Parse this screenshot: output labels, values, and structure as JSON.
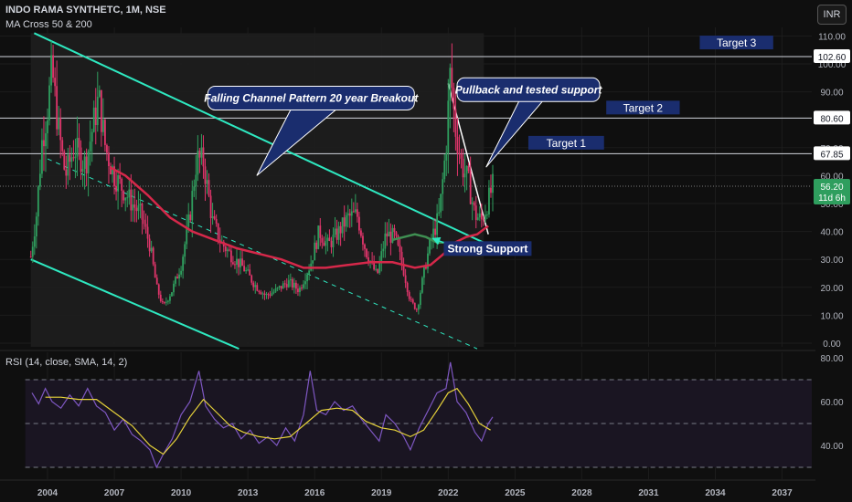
{
  "header": {
    "title": "INDO RAMA SYNTHETC, 1M, NSE",
    "indicator": "MA Cross 50 & 200",
    "currency": "INR"
  },
  "rsi_label": "RSI (14, close, SMA, 14, 2)",
  "colors": {
    "background": "#0f0f0f",
    "channel": "#2ee8c0",
    "up_candle": "#2f9e5e",
    "down_candle": "#e0356b",
    "ma50": "#d6284a",
    "ma200": "#3f8f52",
    "target_box": "#1a2d6e",
    "rsi_line": "#7e57c2",
    "rsi_ma": "#e6d23a",
    "price_tag": "#2f9e5e"
  },
  "chart_data": [
    {
      "type": "candlestick",
      "title": "INDO RAMA SYNTHETC, 1M, NSE",
      "interval": "1M",
      "x_ticks": [
        "2004",
        "2007",
        "2010",
        "2013",
        "2016",
        "2019",
        "2022",
        "2025",
        "2028",
        "2031",
        "2034",
        "2037"
      ],
      "y_ticks": [
        "0.00",
        "10.00",
        "20.00",
        "30.00",
        "40.00",
        "50.00",
        "60.00",
        "70.00",
        "90.00",
        "100.00",
        "110.00"
      ],
      "ylim": [
        0,
        115
      ],
      "grid": true,
      "price_path": [
        [
          2003.25,
          31
        ],
        [
          2003.5,
          46
        ],
        [
          2003.75,
          72
        ],
        [
          2004.0,
          84
        ],
        [
          2004.2,
          98
        ],
        [
          2004.5,
          76
        ],
        [
          2004.8,
          60
        ],
        [
          2005.2,
          70
        ],
        [
          2005.7,
          64
        ],
        [
          2006.0,
          76
        ],
        [
          2006.3,
          88
        ],
        [
          2006.6,
          70
        ],
        [
          2007.0,
          60
        ],
        [
          2007.4,
          55
        ],
        [
          2007.8,
          50
        ],
        [
          2008.2,
          46
        ],
        [
          2008.6,
          35
        ],
        [
          2008.9,
          20
        ],
        [
          2009.2,
          13
        ],
        [
          2009.6,
          19
        ],
        [
          2010.0,
          28
        ],
        [
          2010.4,
          46
        ],
        [
          2010.7,
          66
        ],
        [
          2011.0,
          65
        ],
        [
          2011.4,
          44
        ],
        [
          2011.8,
          36
        ],
        [
          2012.3,
          31
        ],
        [
          2012.8,
          27
        ],
        [
          2013.3,
          21
        ],
        [
          2013.8,
          17
        ],
        [
          2014.3,
          19
        ],
        [
          2014.8,
          22
        ],
        [
          2015.3,
          19
        ],
        [
          2015.8,
          28
        ],
        [
          2016.2,
          40
        ],
        [
          2016.6,
          35
        ],
        [
          2017.0,
          39
        ],
        [
          2017.5,
          45
        ],
        [
          2017.9,
          46
        ],
        [
          2018.3,
          33
        ],
        [
          2018.8,
          24
        ],
        [
          2019.2,
          39
        ],
        [
          2019.6,
          38
        ],
        [
          2020.0,
          26
        ],
        [
          2020.3,
          15
        ],
        [
          2020.6,
          12
        ],
        [
          2020.9,
          25
        ],
        [
          2021.2,
          36
        ],
        [
          2021.6,
          46
        ],
        [
          2021.9,
          70
        ],
        [
          2022.1,
          98
        ],
        [
          2022.3,
          78
        ],
        [
          2022.6,
          64
        ],
        [
          2022.9,
          58
        ],
        [
          2023.2,
          46
        ],
        [
          2023.5,
          44
        ],
        [
          2023.8,
          51
        ],
        [
          2024.0,
          56.2
        ]
      ],
      "ma50": [
        [
          2006.8,
          63
        ],
        [
          2007.5,
          60
        ],
        [
          2008.5,
          53
        ],
        [
          2009.5,
          45
        ],
        [
          2010.5,
          40
        ],
        [
          2011.5,
          37
        ],
        [
          2012.5,
          34
        ],
        [
          2013.5,
          32
        ],
        [
          2014.5,
          30
        ],
        [
          2015.5,
          27
        ],
        [
          2016.5,
          27
        ],
        [
          2017.5,
          28
        ],
        [
          2018.5,
          29
        ],
        [
          2019.5,
          29
        ],
        [
          2020.5,
          27
        ],
        [
          2021.2,
          28
        ],
        [
          2021.8,
          32
        ],
        [
          2022.3,
          36
        ],
        [
          2022.8,
          38
        ],
        [
          2023.3,
          39
        ],
        [
          2023.8,
          42
        ]
      ],
      "ma200": [
        [
          2019.5,
          37
        ],
        [
          2020.5,
          39
        ],
        [
          2021.0,
          38
        ],
        [
          2021.5,
          36
        ],
        [
          2022.0,
          36
        ]
      ],
      "last_price": "56.20",
      "countdown": "11d 6h",
      "price_levels": [
        {
          "label": "102.60",
          "value": 102.6,
          "target": "Target 3",
          "target_value": 107.5,
          "target_from": 2033.3,
          "target_to": 2036.6
        },
        {
          "label": "80.60",
          "value": 80.6,
          "target": "Target 2",
          "target_value": 84.2,
          "target_from": 2029.1,
          "target_to": 2032.4
        },
        {
          "label": "67.85",
          "value": 67.85,
          "target": "Target 1",
          "target_value": 71.6,
          "target_from": 2025.6,
          "target_to": 2029.0
        }
      ],
      "annotations": [
        {
          "text": "Falling Channel Pattern 20 year Breakout"
        },
        {
          "text": "Pullback and tested support"
        },
        {
          "text": "Strong Support"
        }
      ]
    },
    {
      "type": "line",
      "title": "RSI (14, close, SMA, 14, 2)",
      "y_ticks": [
        "80.00",
        "60.00",
        "40.00"
      ],
      "ylim": [
        28,
        82
      ],
      "levels": [
        70,
        50,
        30
      ],
      "rsi": [
        [
          2003.3,
          64
        ],
        [
          2003.6,
          59
        ],
        [
          2003.9,
          66
        ],
        [
          2004.2,
          60
        ],
        [
          2004.6,
          57
        ],
        [
          2005.0,
          63
        ],
        [
          2005.4,
          58
        ],
        [
          2005.8,
          66
        ],
        [
          2006.2,
          58
        ],
        [
          2006.6,
          55
        ],
        [
          2007.0,
          47
        ],
        [
          2007.4,
          52
        ],
        [
          2007.8,
          45
        ],
        [
          2008.2,
          42
        ],
        [
          2008.6,
          38
        ],
        [
          2008.9,
          30
        ],
        [
          2009.2,
          36
        ],
        [
          2009.6,
          43
        ],
        [
          2010.0,
          54
        ],
        [
          2010.4,
          60
        ],
        [
          2010.8,
          74
        ],
        [
          2011.1,
          58
        ],
        [
          2011.5,
          52
        ],
        [
          2011.9,
          48
        ],
        [
          2012.3,
          50
        ],
        [
          2012.7,
          43
        ],
        [
          2013.1,
          47
        ],
        [
          2013.5,
          41
        ],
        [
          2013.9,
          44
        ],
        [
          2014.3,
          40
        ],
        [
          2014.7,
          48
        ],
        [
          2015.1,
          42
        ],
        [
          2015.5,
          54
        ],
        [
          2015.8,
          74
        ],
        [
          2016.1,
          56
        ],
        [
          2016.5,
          54
        ],
        [
          2016.9,
          60
        ],
        [
          2017.3,
          56
        ],
        [
          2017.7,
          58
        ],
        [
          2018.1,
          52
        ],
        [
          2018.5,
          47
        ],
        [
          2018.9,
          42
        ],
        [
          2019.2,
          54
        ],
        [
          2019.6,
          50
        ],
        [
          2020.0,
          44
        ],
        [
          2020.3,
          38
        ],
        [
          2020.7,
          48
        ],
        [
          2021.1,
          56
        ],
        [
          2021.5,
          64
        ],
        [
          2021.9,
          66
        ],
        [
          2022.1,
          78
        ],
        [
          2022.4,
          60
        ],
        [
          2022.8,
          55
        ],
        [
          2023.2,
          46
        ],
        [
          2023.5,
          42
        ],
        [
          2023.8,
          50
        ],
        [
          2024.0,
          53
        ]
      ],
      "rsi_ma": [
        [
          2003.9,
          62
        ],
        [
          2004.6,
          62
        ],
        [
          2005.4,
          61
        ],
        [
          2006.2,
          61
        ],
        [
          2007.0,
          55
        ],
        [
          2007.8,
          49
        ],
        [
          2008.6,
          40
        ],
        [
          2009.2,
          36
        ],
        [
          2009.8,
          43
        ],
        [
          2010.4,
          53
        ],
        [
          2011.0,
          61
        ],
        [
          2011.6,
          55
        ],
        [
          2012.2,
          49
        ],
        [
          2012.8,
          46
        ],
        [
          2013.5,
          44
        ],
        [
          2014.2,
          43
        ],
        [
          2014.9,
          44
        ],
        [
          2015.6,
          50
        ],
        [
          2016.3,
          56
        ],
        [
          2017.0,
          57
        ],
        [
          2017.7,
          56
        ],
        [
          2018.3,
          51
        ],
        [
          2019.0,
          48
        ],
        [
          2019.6,
          47
        ],
        [
          2020.3,
          44
        ],
        [
          2020.9,
          47
        ],
        [
          2021.5,
          56
        ],
        [
          2022.0,
          64
        ],
        [
          2022.4,
          66
        ],
        [
          2022.9,
          59
        ],
        [
          2023.4,
          50
        ],
        [
          2023.9,
          47
        ]
      ]
    }
  ]
}
